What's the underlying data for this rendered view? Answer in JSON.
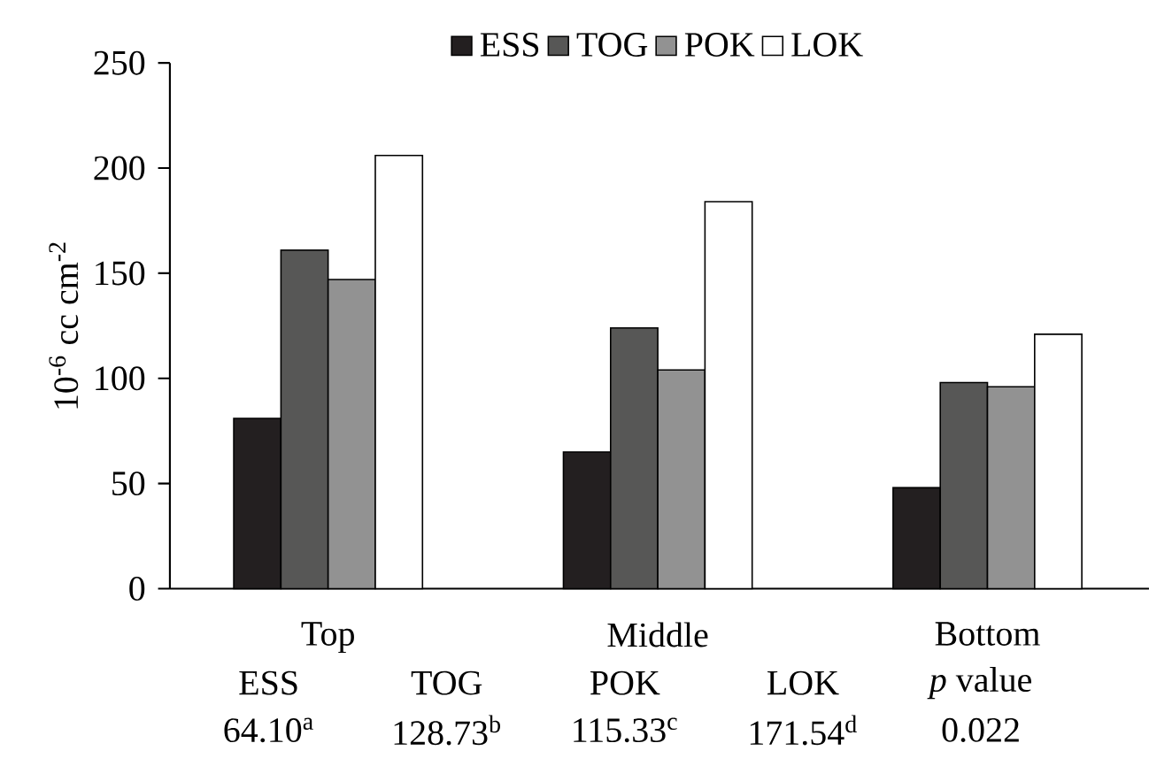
{
  "chart_data": {
    "type": "bar",
    "ylabel": "10$^{-6}$ cc cm$^{-2}$",
    "categories": [
      "Top",
      "Middle",
      "Bottom"
    ],
    "series": [
      {
        "name": "ESS",
        "color": "#231f20",
        "values": [
          81,
          65,
          48
        ]
      },
      {
        "name": "TOG",
        "color": "#575756",
        "values": [
          161,
          124,
          98
        ]
      },
      {
        "name": "POK",
        "color": "#929292",
        "values": [
          147,
          104,
          96
        ]
      },
      {
        "name": "LOK",
        "color": "#ffffff",
        "values": [
          206,
          184,
          121
        ]
      }
    ],
    "ylim": [
      0,
      250
    ],
    "yticks": [
      0,
      50,
      100,
      150,
      200,
      250
    ],
    "grid": false,
    "legend": "top",
    "annotations": [
      "ESS",
      "TOG",
      "POK",
      "LOK",
      "*p* value",
      "64.10$^{a}$",
      "128.73$^{b}$",
      "115.33$^{c}$",
      "171.54$^{d}$",
      "0.022"
    ]
  }
}
